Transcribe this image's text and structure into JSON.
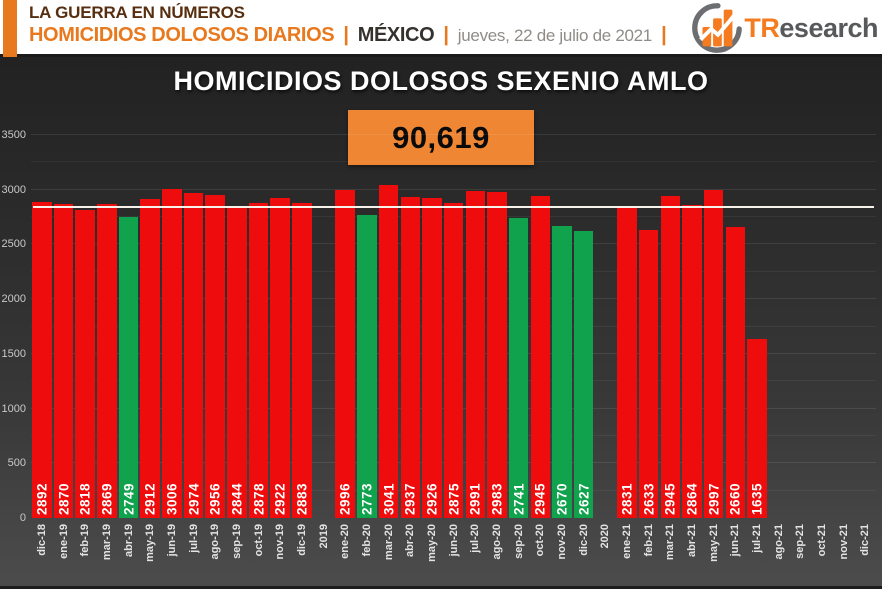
{
  "header": {
    "kicker": "LA GUERRA EN NÚMEROS",
    "title": "HOMICIDIOS DOLOSOS DIARIOS",
    "pipe": "|",
    "region": "MÉXICO",
    "date": "jueves, 22 de julio de 2021",
    "logo": {
      "primary": "TR",
      "secondary": "esearch"
    }
  },
  "chart": {
    "title": "HOMICIDIOS DOLOSOS SEXENIO AMLO",
    "total": "90,619"
  },
  "colors": {
    "header_orange": "#E8791F",
    "kicker_brown": "#572F10",
    "stat_box_orange": "#EF8634",
    "bar_red": "#EE0C0C",
    "bar_green": "#11A24D",
    "average_line": "#F7F3EA"
  },
  "chart_data": {
    "type": "bar",
    "title": "HOMICIDIOS DOLOSOS SEXENIO AMLO",
    "total_annotation": "90,619",
    "xlabel": "",
    "ylabel": "",
    "ylim": [
      0,
      3500
    ],
    "yticks": [
      0,
      500,
      1000,
      1500,
      2000,
      2500,
      3000,
      3500
    ],
    "grid": true,
    "gridline_step": 250,
    "legend": false,
    "average_line": 2830,
    "bars": [
      {
        "label": "dic-18",
        "value": 2892,
        "color": "red"
      },
      {
        "label": "ene-19",
        "value": 2870,
        "color": "red"
      },
      {
        "label": "feb-19",
        "value": 2818,
        "color": "red"
      },
      {
        "label": "mar-19",
        "value": 2869,
        "color": "red"
      },
      {
        "label": "abr-19",
        "value": 2749,
        "color": "green"
      },
      {
        "label": "may-19",
        "value": 2912,
        "color": "red"
      },
      {
        "label": "jun-19",
        "value": 3006,
        "color": "red"
      },
      {
        "label": "jul-19",
        "value": 2974,
        "color": "red"
      },
      {
        "label": "ago-19",
        "value": 2956,
        "color": "red"
      },
      {
        "label": "sep-19",
        "value": 2844,
        "color": "red"
      },
      {
        "label": "oct-19",
        "value": 2878,
        "color": "red"
      },
      {
        "label": "nov-19",
        "value": 2922,
        "color": "red"
      },
      {
        "label": "dic-19",
        "value": 2883,
        "color": "red"
      },
      {
        "label": "2019",
        "value": null
      },
      {
        "label": "ene-20",
        "value": 2996,
        "color": "red"
      },
      {
        "label": "feb-20",
        "value": 2773,
        "color": "green"
      },
      {
        "label": "mar-20",
        "value": 3041,
        "color": "red"
      },
      {
        "label": "abr-20",
        "value": 2937,
        "color": "red"
      },
      {
        "label": "may-20",
        "value": 2926,
        "color": "red"
      },
      {
        "label": "jun-20",
        "value": 2875,
        "color": "red"
      },
      {
        "label": "jul-20",
        "value": 2991,
        "color": "red"
      },
      {
        "label": "ago-20",
        "value": 2983,
        "color": "red"
      },
      {
        "label": "sep-20",
        "value": 2741,
        "color": "green"
      },
      {
        "label": "oct-20",
        "value": 2945,
        "color": "red"
      },
      {
        "label": "nov-20",
        "value": 2670,
        "color": "green"
      },
      {
        "label": "dic-20",
        "value": 2627,
        "color": "green"
      },
      {
        "label": "2020",
        "value": null
      },
      {
        "label": "ene-21",
        "value": 2831,
        "color": "red"
      },
      {
        "label": "feb-21",
        "value": 2633,
        "color": "red"
      },
      {
        "label": "mar-21",
        "value": 2945,
        "color": "red"
      },
      {
        "label": "abr-21",
        "value": 2864,
        "color": "red"
      },
      {
        "label": "may-21",
        "value": 2997,
        "color": "red"
      },
      {
        "label": "jun-21",
        "value": 2660,
        "color": "red"
      },
      {
        "label": "jul-21",
        "value": 1635,
        "color": "red"
      },
      {
        "label": "ago-21",
        "value": null
      },
      {
        "label": "sep-21",
        "value": null
      },
      {
        "label": "oct-21",
        "value": null
      },
      {
        "label": "nov-21",
        "value": null
      },
      {
        "label": "dic-21",
        "value": null
      }
    ]
  }
}
